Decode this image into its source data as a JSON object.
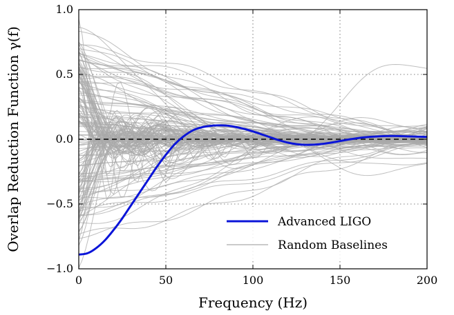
{
  "chart_data": {
    "type": "line",
    "xlabel": "Frequency (Hz)",
    "ylabel": "Overlap Reduction Function γ(f)",
    "xlim": [
      0,
      200
    ],
    "ylim": [
      -1.0,
      1.0
    ],
    "x_ticks": [
      0,
      50,
      100,
      150,
      200
    ],
    "x_tick_labels": [
      "0",
      "50",
      "100",
      "150",
      "200"
    ],
    "y_ticks": [
      -1.0,
      -0.5,
      0.0,
      0.5,
      1.0
    ],
    "y_tick_labels": [
      "−1.0",
      "−0.5",
      "0.0",
      "0.5",
      "1.0"
    ],
    "grid": "dotted",
    "legend_position": "lower-right",
    "zero_line": {
      "y": 0.0,
      "style": "dashed",
      "color": "#000000"
    },
    "series": [
      {
        "name": "Advanced LIGO",
        "color": "#0a14d8",
        "x": [
          0,
          5,
          10,
          15,
          20,
          25,
          30,
          35,
          40,
          45,
          50,
          55,
          60,
          65,
          70,
          75,
          80,
          85,
          90,
          95,
          100,
          105,
          110,
          115,
          120,
          125,
          130,
          135,
          140,
          145,
          150,
          155,
          160,
          165,
          170,
          175,
          180,
          185,
          190,
          195,
          200
        ],
        "values": [
          -0.89,
          -0.88,
          -0.84,
          -0.78,
          -0.7,
          -0.61,
          -0.51,
          -0.41,
          -0.31,
          -0.21,
          -0.12,
          -0.04,
          0.02,
          0.065,
          0.09,
          0.102,
          0.107,
          0.105,
          0.095,
          0.08,
          0.06,
          0.038,
          0.015,
          -0.008,
          -0.026,
          -0.038,
          -0.043,
          -0.042,
          -0.036,
          -0.026,
          -0.014,
          -0.002,
          0.008,
          0.016,
          0.021,
          0.024,
          0.025,
          0.024,
          0.022,
          0.02,
          0.018
        ]
      },
      {
        "name": "Random Baselines",
        "color": "#aaaaaa",
        "count": 160
      }
    ]
  }
}
